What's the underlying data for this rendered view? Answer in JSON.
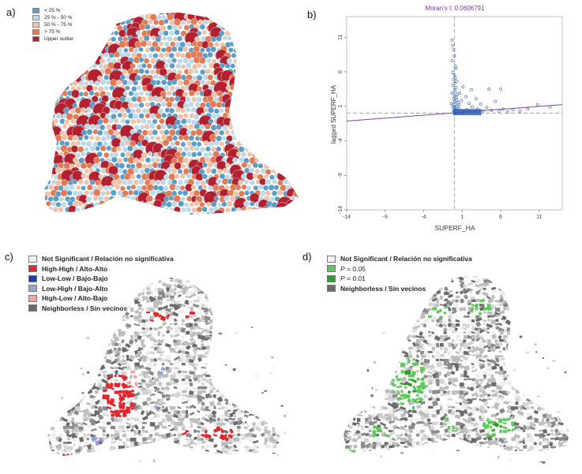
{
  "panels": {
    "a": {
      "label": "a)",
      "legend": [
        {
          "text": "< 25 %",
          "color": "#5b9dc9"
        },
        {
          "text": "25 % - 50 %",
          "color": "#bcd9ea"
        },
        {
          "text": "50 % - 75 %",
          "color": "#f2c2a8"
        },
        {
          "text": "> 75 %",
          "color": "#e07b56"
        },
        {
          "text": "Upper outlier",
          "color": "#b3202f"
        }
      ]
    },
    "b": {
      "label": "b)",
      "title": "Moran's I: 0.0606791",
      "xlabel": "SUPERF_HA",
      "ylabel": "lagged SUPERF_HA",
      "colors": {
        "points": "#2f5fb3",
        "fit": "#8b3fa8",
        "title": "#7b2f9c"
      }
    },
    "c": {
      "label": "c)",
      "legend": [
        {
          "text": "Not Significant / Relación no significativa",
          "color": "#f2f2f2"
        },
        {
          "text": "High-High / Alto-Alto",
          "color": "#e3262a"
        },
        {
          "text": "Low-Low / Bajo-Bajo",
          "color": "#1f3f9c"
        },
        {
          "text": "Low-High / Bajo-Alto",
          "color": "#9aa0d8"
        },
        {
          "text": "High-Low / Alto-Bajo",
          "color": "#f2a7a7"
        },
        {
          "text": "Neighborless / Sin vecinos",
          "color": "#6b6b6b"
        }
      ]
    },
    "d": {
      "label": "d)",
      "legend": [
        {
          "text": "Not Significant / Relación no significativa",
          "color": "#f2f2f2"
        },
        {
          "prefix": "P",
          "text": " = 0.05",
          "color": "#5ec95a"
        },
        {
          "prefix": "P",
          "text": " = 0.01",
          "color": "#2f9e2f"
        },
        {
          "text": "Neighborless / Sin vecinos",
          "color": "#6b6b6b"
        }
      ]
    }
  },
  "chart_data": {
    "type": "scatter",
    "title": "Moran's I: 0.0606791",
    "xlabel": "SUPERF_HA",
    "ylabel": "lagged SUPERF_HA",
    "xlim": [
      -14,
      14
    ],
    "ylim": [
      -14,
      14
    ],
    "xticks": [
      "-14",
      "-9",
      "-4",
      "1",
      "6",
      "11"
    ],
    "yticks": [
      "11",
      "6",
      "1",
      "-4",
      "-9",
      "-14"
    ],
    "slope": 0.0606791,
    "points": [
      [
        -0.3,
        10.6
      ],
      [
        -0.2,
        9.8
      ],
      [
        -0.1,
        9.2
      ],
      [
        0.0,
        8.3
      ],
      [
        -0.3,
        7.6
      ],
      [
        0.1,
        6.8
      ],
      [
        0.2,
        6.5
      ],
      [
        -0.2,
        5.9
      ],
      [
        0.0,
        5.5
      ],
      [
        0.1,
        5.1
      ],
      [
        -0.1,
        4.9
      ],
      [
        0.3,
        4.6
      ],
      [
        0.0,
        4.3
      ],
      [
        -0.2,
        4.0
      ],
      [
        0.2,
        3.7
      ],
      [
        0.0,
        3.4
      ],
      [
        0.1,
        3.1
      ],
      [
        -0.3,
        2.9
      ],
      [
        0.4,
        2.7
      ],
      [
        0.0,
        2.5
      ],
      [
        0.2,
        2.3
      ],
      [
        -0.1,
        2.1
      ],
      [
        0.3,
        1.9
      ],
      [
        0.0,
        1.7
      ],
      [
        0.5,
        1.5
      ],
      [
        0.1,
        1.3
      ],
      [
        -0.2,
        1.2
      ],
      [
        0.4,
        1.0
      ],
      [
        0.0,
        0.9
      ],
      [
        0.2,
        0.7
      ],
      [
        0.6,
        0.6
      ],
      [
        0.1,
        0.5
      ],
      [
        0.3,
        0.4
      ],
      [
        -0.1,
        0.3
      ],
      [
        0.8,
        0.3
      ],
      [
        0.0,
        0.2
      ],
      [
        1.0,
        0.2
      ],
      [
        0.4,
        0.1
      ],
      [
        1.3,
        0.1
      ],
      [
        0.2,
        0.0
      ],
      [
        1.6,
        0.5
      ],
      [
        2.0,
        0.3
      ],
      [
        2.3,
        0.9
      ],
      [
        2.6,
        0.2
      ],
      [
        3.0,
        0.6
      ],
      [
        3.4,
        1.3
      ],
      [
        3.7,
        0.3
      ],
      [
        4.2,
        0.8
      ],
      [
        4.8,
        0.4
      ],
      [
        5.3,
        1.7
      ],
      [
        5.8,
        0.3
      ],
      [
        6.3,
        0.6
      ],
      [
        6.9,
        0.2
      ],
      [
        7.6,
        0.5
      ],
      [
        8.5,
        0.3
      ],
      [
        9.5,
        0.6
      ],
      [
        10.8,
        1.2
      ],
      [
        12.4,
        0.9
      ],
      [
        4.5,
        3.5
      ],
      [
        6.0,
        3.5
      ],
      [
        2.2,
        3.4
      ],
      [
        1.5,
        2.4
      ],
      [
        0.9,
        1.8
      ],
      [
        1.1,
        3.8
      ],
      [
        0.7,
        2.9
      ],
      [
        -0.4,
        1.4
      ],
      [
        -0.2,
        0.8
      ],
      [
        0.6,
        1.2
      ],
      [
        1.9,
        1.4
      ],
      [
        2.8,
        2.1
      ]
    ]
  }
}
